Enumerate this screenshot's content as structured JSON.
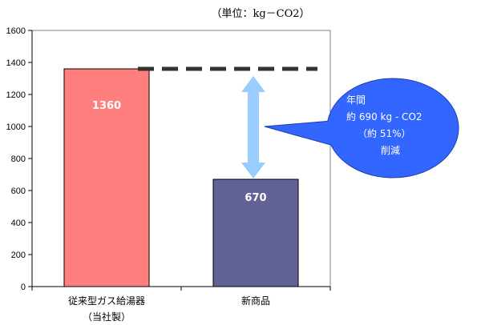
{
  "chart_data": {
    "type": "bar",
    "unit_label": "（単位：kg－CO2）",
    "categories": [
      {
        "line1": "従来型ガス給湯器",
        "line2": "（当社製）"
      },
      {
        "line1": "新商品",
        "line2": ""
      }
    ],
    "values": [
      1360,
      670
    ],
    "value_labels": [
      "1360",
      "670"
    ],
    "bar_colors": [
      "#ff7f7f",
      "#626297"
    ],
    "ylim": [
      0,
      1600
    ],
    "yticks": [
      0,
      200,
      400,
      600,
      800,
      1000,
      1200,
      1400,
      1600
    ],
    "grid": false,
    "reference_line": {
      "value": 1360,
      "style": "dashed",
      "color": "#333333"
    },
    "arrow_color": "#99ccff",
    "annotation": {
      "lines": [
        "年間",
        "約 690 kg - CO2",
        "（約 51%）",
        "削減"
      ],
      "color": "#3366ff"
    }
  }
}
